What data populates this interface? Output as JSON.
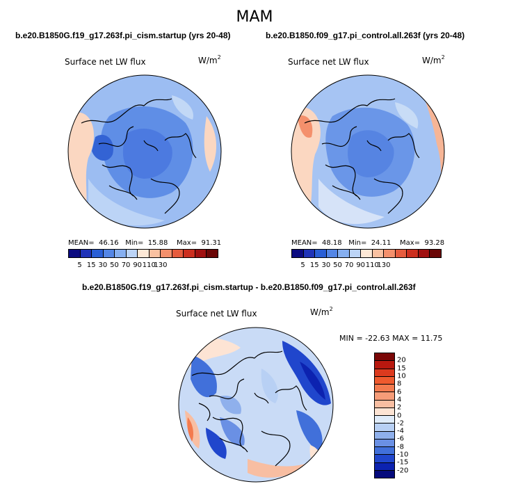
{
  "season": "MAM",
  "panels": {
    "left": {
      "case_title": "b.e20.B1850G.f19_g17.263f.pi_cism.startup (yrs 20-48)",
      "field_title": "Surface net LW flux",
      "units_base": "W/m",
      "units_exp": "2",
      "mean_label": "MEAN=",
      "mean": "46.16",
      "min_label": "Min=",
      "min": "15.88",
      "max_label": "Max=",
      "max": "91.31"
    },
    "right": {
      "case_title": "b.e20.B1850.f09_g17.pi_control.all.263f (yrs 20-48)",
      "field_title": "Surface net LW flux",
      "units_base": "W/m",
      "units_exp": "2",
      "mean_label": "MEAN=",
      "mean": "48.18",
      "min_label": "Min=",
      "min": "24.11",
      "max_label": "Max=",
      "max": "93.28"
    },
    "diff": {
      "case_title": "b.e20.B1850G.f19_g17.263f.pi_cism.startup - b.e20.B1850.f09_g17.pi_control.all.263f",
      "field_title": "Surface net LW flux",
      "units_base": "W/m",
      "units_exp": "2",
      "minmax_text": "MIN = -22.63 MAX =  11.75"
    }
  },
  "abs_colorbar": {
    "labels": [
      "5",
      "15",
      "30",
      "50",
      "70",
      "90",
      "110",
      "130"
    ],
    "colors": [
      "#0b0b80",
      "#1f33b8",
      "#2a5fd6",
      "#5486e6",
      "#86aff0",
      "#bcd4f6",
      "#fde8d6",
      "#f9c1a1",
      "#f4906c",
      "#e65c3e",
      "#cc2f1f",
      "#a01010",
      "#6a0606"
    ]
  },
  "diff_colorbar": {
    "labels": [
      "20",
      "15",
      "10",
      "8",
      "6",
      "4",
      "2",
      "0",
      "-2",
      "-4",
      "-6",
      "-8",
      "-10",
      "-15",
      "-20"
    ],
    "colors": [
      "#7a0606",
      "#b8180f",
      "#dc3a1e",
      "#ef5a2e",
      "#f37a4e",
      "#f69c78",
      "#f8bea2",
      "#fde4d4",
      "#e0ecfa",
      "#b8d0f4",
      "#8fb0ec",
      "#6a90e4",
      "#4170da",
      "#2046cc",
      "#0c22b0",
      "#050a7c"
    ]
  }
}
